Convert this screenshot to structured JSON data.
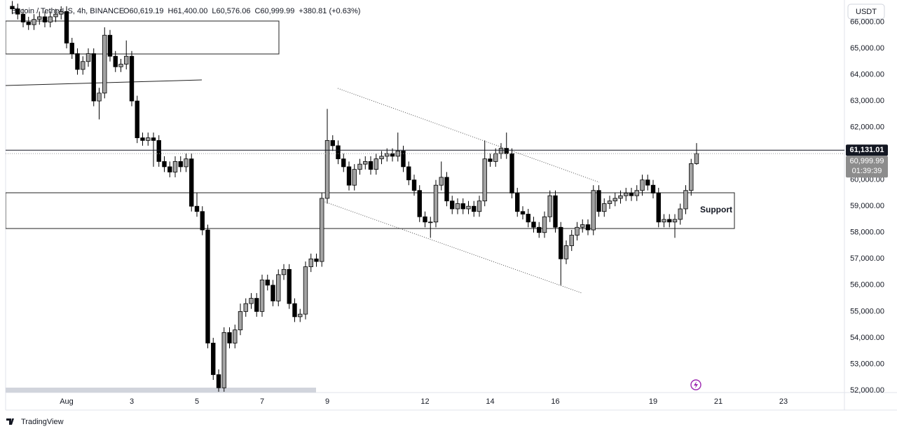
{
  "chart_data": {
    "type": "candlestick",
    "title": "Bitcoin / TetherUS, 4h, BINANCE",
    "ohlc_labels": [
      "O60,619.19",
      "H61,400.00",
      "L60,576.06",
      "C60,999.99",
      "+380.81 (+0.63%)"
    ],
    "currency": "USDT",
    "annotation": "Support",
    "brand": "TradingView",
    "countdown": "01:39:39",
    "last_price": {
      "value": 60999.99,
      "label": "60,999.99"
    },
    "price_line": {
      "value": 61131.01,
      "label": "61,131.01"
    },
    "up_color": "#a3a3a3",
    "down_color": "#000000",
    "grid": false,
    "xlim": [
      -0.871,
      24.871
    ],
    "xticks": [
      {
        "value": 1,
        "label": "Aug"
      },
      3,
      5,
      7,
      9,
      12,
      14,
      16,
      19,
      21,
      23
    ],
    "ylim": [
      51920,
      66838
    ],
    "yticks": [
      {
        "value": 52000,
        "label": "52,000.00"
      },
      {
        "value": 53000,
        "label": "53,000.00"
      },
      {
        "value": 54000,
        "label": "54,000.00"
      },
      {
        "value": 55000,
        "label": "55,000.00"
      },
      {
        "value": 56000,
        "label": "56,000.00"
      },
      {
        "value": 57000,
        "label": "57,000.00"
      },
      {
        "value": 58000,
        "label": "58,000.00"
      },
      {
        "value": 59000,
        "label": "59,000.00"
      },
      {
        "value": 60000,
        "label": "60,000.00"
      },
      {
        "value": 61000,
        "label": "61,000.00"
      },
      {
        "value": 62000,
        "label": "62,000.00"
      },
      {
        "value": 63000,
        "label": "63,000.00"
      },
      {
        "value": 64000,
        "label": "64,000.00"
      },
      {
        "value": 65000,
        "label": "65,000.00"
      },
      {
        "value": 66000,
        "label": "66,000.00"
      }
    ],
    "x": [
      -0.667,
      -0.5,
      -0.333,
      -0.167,
      0,
      0.167,
      0.333,
      0.5,
      0.667,
      0.833,
      1,
      1.167,
      1.333,
      1.5,
      1.667,
      1.833,
      2,
      2.167,
      2.333,
      2.5,
      2.667,
      2.833,
      3,
      3.167,
      3.333,
      3.5,
      3.667,
      3.833,
      4,
      4.167,
      4.333,
      4.5,
      4.667,
      4.833,
      5,
      5.167,
      5.333,
      5.5,
      5.667,
      5.833,
      6,
      6.167,
      6.333,
      6.5,
      6.667,
      6.833,
      7,
      7.167,
      7.333,
      7.5,
      7.667,
      7.833,
      8,
      8.167,
      8.333,
      8.5,
      8.667,
      8.833,
      9,
      9.167,
      9.333,
      9.5,
      9.667,
      9.833,
      10,
      10.167,
      10.333,
      10.5,
      10.667,
      10.833,
      11,
      11.167,
      11.333,
      11.5,
      11.667,
      11.833,
      12,
      12.167,
      12.333,
      12.5,
      12.667,
      12.833,
      13,
      13.167,
      13.333,
      13.5,
      13.667,
      13.833,
      14,
      14.167,
      14.333,
      14.5,
      14.667,
      14.833,
      15,
      15.167,
      15.333,
      15.5,
      15.667,
      15.833,
      16,
      16.167,
      16.333,
      16.5,
      16.667,
      16.833,
      17,
      17.167,
      17.333,
      17.5,
      17.667,
      17.833,
      18,
      18.167,
      18.333,
      18.5,
      18.667,
      18.833,
      19,
      19.167,
      19.333,
      19.5,
      19.667,
      19.833,
      20,
      20.167,
      20.333
    ],
    "open": [
      66600,
      66500,
      66300,
      66000,
      65900,
      66100,
      66200,
      66000,
      66200,
      66300,
      66400,
      65200,
      64800,
      64200,
      64500,
      64800,
      63000,
      63300,
      65500,
      64700,
      64300,
      64400,
      64700,
      63000,
      61600,
      61500,
      61600,
      61500,
      60700,
      60500,
      60300,
      60700,
      60500,
      60800,
      59000,
      58800,
      58100,
      53800,
      52600,
      52100,
      54200,
      53800,
      54300,
      55000,
      55300,
      55500,
      55000,
      56200,
      56000,
      55400,
      56400,
      56600,
      55300,
      54800,
      54900,
      56700,
      57000,
      56900,
      59300,
      61500,
      61300,
      60800,
      60500,
      59800,
      60400,
      60600,
      60700,
      60400,
      60800,
      60900,
      61000,
      60900,
      61100,
      60500,
      60000,
      59600,
      58600,
      58400,
      58400,
      59800,
      60100,
      59200,
      58900,
      59100,
      58900,
      59000,
      58800,
      59200,
      60800,
      60700,
      61000,
      61200,
      61000,
      59500,
      58800,
      58700,
      58400,
      58200,
      58000,
      58600,
      59400,
      58200,
      57000,
      57500,
      57900,
      58200,
      58300,
      58100,
      59600,
      58800,
      59100,
      59200,
      59300,
      59400,
      59500,
      59400,
      59600,
      60000,
      59800,
      59500,
      58400,
      58500,
      58400,
      58500,
      58900,
      59600,
      60619.19
    ],
    "high": [
      66800,
      66700,
      66500,
      66200,
      66300,
      66400,
      66400,
      66400,
      66500,
      66600,
      66600,
      65400,
      65000,
      64700,
      65000,
      65000,
      63500,
      65800,
      65700,
      64900,
      64600,
      65300,
      64900,
      63200,
      61800,
      61800,
      61800,
      61700,
      60900,
      60700,
      60900,
      60900,
      61000,
      61000,
      59500,
      59000,
      58300,
      54000,
      52800,
      54400,
      54400,
      54500,
      55300,
      55500,
      55700,
      55700,
      56400,
      56400,
      56200,
      56600,
      56800,
      56800,
      55500,
      55100,
      56900,
      57200,
      57200,
      59500,
      62700,
      61700,
      61500,
      61000,
      60700,
      60600,
      60800,
      60900,
      60900,
      61000,
      61100,
      61200,
      61200,
      61800,
      61300,
      60700,
      60200,
      59800,
      58800,
      58600,
      60000,
      60700,
      60300,
      59400,
      59300,
      59300,
      59200,
      59200,
      59400,
      61500,
      61000,
      61200,
      61400,
      61800,
      61200,
      59700,
      59000,
      58900,
      58600,
      58400,
      58800,
      59600,
      59600,
      58400,
      57700,
      58100,
      58400,
      58500,
      58500,
      59800,
      59800,
      59300,
      59400,
      59500,
      59600,
      59700,
      59700,
      59800,
      60200,
      60200,
      60000,
      59700,
      58700,
      58700,
      58700,
      59100,
      59800,
      60800,
      61400
    ],
    "low": [
      66300,
      66100,
      65800,
      65700,
      65700,
      65900,
      65800,
      65800,
      66000,
      66100,
      65000,
      64600,
      64000,
      64000,
      64300,
      62800,
      62300,
      63100,
      64500,
      64100,
      64100,
      64200,
      62800,
      61400,
      61300,
      61300,
      60500,
      60500,
      60300,
      60100,
      60100,
      60300,
      60300,
      58800,
      58600,
      57900,
      53600,
      52400,
      51950,
      51950,
      53600,
      53600,
      54100,
      54800,
      55100,
      54800,
      54800,
      55800,
      55200,
      55200,
      56200,
      55100,
      54600,
      54600,
      54700,
      56500,
      56700,
      56700,
      59100,
      61100,
      60600,
      60300,
      59600,
      59600,
      60200,
      60400,
      60200,
      60200,
      60600,
      60700,
      60700,
      60700,
      60300,
      59800,
      59400,
      58400,
      58200,
      57800,
      58200,
      59600,
      59000,
      58700,
      58700,
      58700,
      58700,
      58600,
      58600,
      59000,
      60500,
      60500,
      60800,
      60800,
      59300,
      58600,
      58500,
      58200,
      58000,
      57800,
      57800,
      58400,
      58000,
      56000,
      56800,
      57300,
      57700,
      58000,
      57900,
      57900,
      58600,
      58600,
      58900,
      59000,
      59100,
      59200,
      59200,
      59200,
      59400,
      59600,
      59300,
      58200,
      58200,
      58200,
      57800,
      58300,
      58700,
      59400,
      60576.06
    ],
    "close": [
      66500,
      66300,
      66000,
      65900,
      66100,
      66200,
      66000,
      66200,
      66300,
      66400,
      65200,
      64800,
      64200,
      64500,
      64800,
      63000,
      63300,
      65500,
      64700,
      64300,
      64400,
      64700,
      63000,
      61600,
      61500,
      61600,
      61500,
      60700,
      60500,
      60300,
      60700,
      60500,
      60800,
      59000,
      58800,
      58100,
      53800,
      52600,
      52100,
      54200,
      53800,
      54300,
      55000,
      55300,
      55500,
      55000,
      56200,
      56000,
      55400,
      56400,
      56600,
      55300,
      54800,
      54900,
      56700,
      57000,
      56900,
      59300,
      61500,
      61300,
      60800,
      60500,
      59800,
      60400,
      60600,
      60700,
      60400,
      60800,
      60900,
      61000,
      60900,
      61100,
      60500,
      60000,
      59600,
      58600,
      58400,
      58400,
      59800,
      60100,
      59200,
      58900,
      59100,
      58900,
      59000,
      58800,
      59200,
      60800,
      60700,
      61000,
      61200,
      61000,
      59500,
      58800,
      58700,
      58400,
      58200,
      58000,
      58600,
      59400,
      58200,
      57000,
      57500,
      57900,
      58200,
      58300,
      58100,
      59600,
      58800,
      59100,
      59200,
      59300,
      59400,
      59500,
      59400,
      59600,
      60000,
      59800,
      59500,
      58400,
      58500,
      58400,
      58500,
      58900,
      59600,
      60619.19,
      60999.99
    ]
  }
}
